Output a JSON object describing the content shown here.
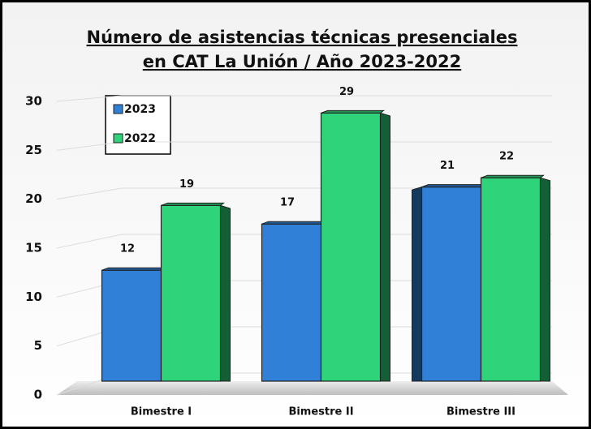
{
  "chart_data": {
    "type": "bar3d",
    "title": [
      "Número de asistencias técnicas presenciales",
      "en CAT La Unión / Año 2023-2022"
    ],
    "categories": [
      "Bimestre I",
      "Bimestre II",
      "Bimestre III"
    ],
    "series": [
      {
        "name": "2023",
        "color": "#2f80d6",
        "values": [
          12,
          17,
          21
        ]
      },
      {
        "name": "2022",
        "color": "#2ed37a",
        "values": [
          19,
          29,
          22
        ]
      }
    ],
    "ylim": [
      0,
      30
    ],
    "yticks": [
      0,
      5,
      10,
      15,
      20,
      25,
      30
    ],
    "grid": true,
    "legend": "top-left"
  }
}
